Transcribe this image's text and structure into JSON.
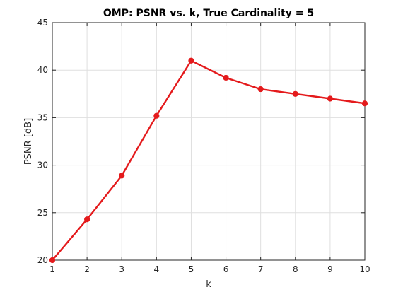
{
  "chart_data": {
    "type": "line",
    "title": "OMP: PSNR vs. k, True Cardinality = 5",
    "xlabel": "k",
    "ylabel": "PSNR [dB]",
    "xlim": [
      1,
      10
    ],
    "ylim": [
      20,
      45
    ],
    "xticks": [
      1,
      2,
      3,
      4,
      5,
      6,
      7,
      8,
      9,
      10
    ],
    "yticks": [
      20,
      25,
      30,
      35,
      40,
      45
    ],
    "grid": true,
    "series": [
      {
        "color": "#e41a1c",
        "marker": "circle",
        "x": [
          1,
          2,
          3,
          4,
          5,
          6,
          7,
          8,
          9,
          10
        ],
        "y": [
          20.0,
          24.3,
          28.9,
          35.2,
          41.0,
          39.2,
          38.0,
          37.5,
          37.0,
          36.5
        ]
      }
    ]
  }
}
